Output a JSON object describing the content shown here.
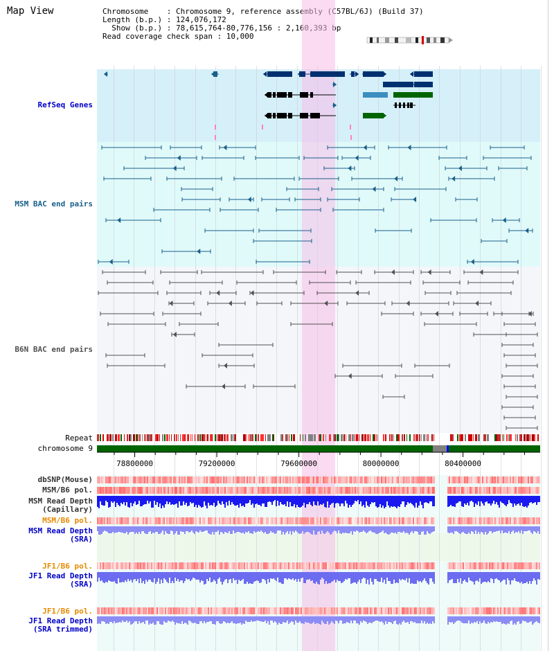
{
  "title": "Map View",
  "info": {
    "line1": "Chromosome    : Chromosome 9, reference assembly (C57BL/6J) (Build 37)",
    "line2": "Length (b.p.) : 124,076,172",
    "line3": "  Show (b.p.) : 78,615,764-80,776,156 : 2,160,393 bp",
    "line4": "Read coverage check span : 10,000"
  },
  "tracks": {
    "refseq": {
      "label": "RefSeq Genes",
      "color": "#0000c8"
    },
    "msm_bac": {
      "label": "MSM BAC end pairs",
      "color": "#1a5f8a"
    },
    "b6n_bac": {
      "label": "B6N BAC end pairs",
      "color": "#505050"
    },
    "repeat": {
      "label": "Repeat"
    },
    "chromosome": {
      "label": "chromosome 9"
    },
    "dbsnp": {
      "label": "dbSNP(Mouse)"
    },
    "msm_pol1": {
      "label": "MSM/B6 pol."
    },
    "msm_depth_cap": {
      "label1": "MSM Read Depth",
      "label2": "(Capillary)"
    },
    "msm_pol2": {
      "label": "MSM/B6 pol.",
      "color": "#e68a00"
    },
    "msm_depth_sra": {
      "label1": "MSM Read Depth",
      "label2": "(SRA)",
      "color": "#0000c8"
    },
    "jf1_pol1": {
      "label": "JF1/B6 pol.",
      "color": "#e68a00"
    },
    "jf1_depth_sra": {
      "label1": "JF1 Read Depth",
      "label2": "(SRA)",
      "color": "#0000c8"
    },
    "jf1_pol2": {
      "label": "JF1/B6 pol.",
      "color": "#e68a00"
    },
    "jf1_depth_trim": {
      "label1": "JF1 Read Depth",
      "label2": "(SRA trimmed)",
      "color": "#0000c8"
    }
  },
  "axis": {
    "ticks": [
      "78800000",
      "79200000",
      "79600000",
      "80000000",
      "80400000"
    ],
    "range": [
      78615764,
      80776156
    ]
  },
  "colors": {
    "highlight": "#f8bee8",
    "refseq_bg": "#d6f0fa",
    "msm_bg": "#e0fafa",
    "b6n_bg": "#f4f6fa",
    "chromosome": "#006400"
  }
}
